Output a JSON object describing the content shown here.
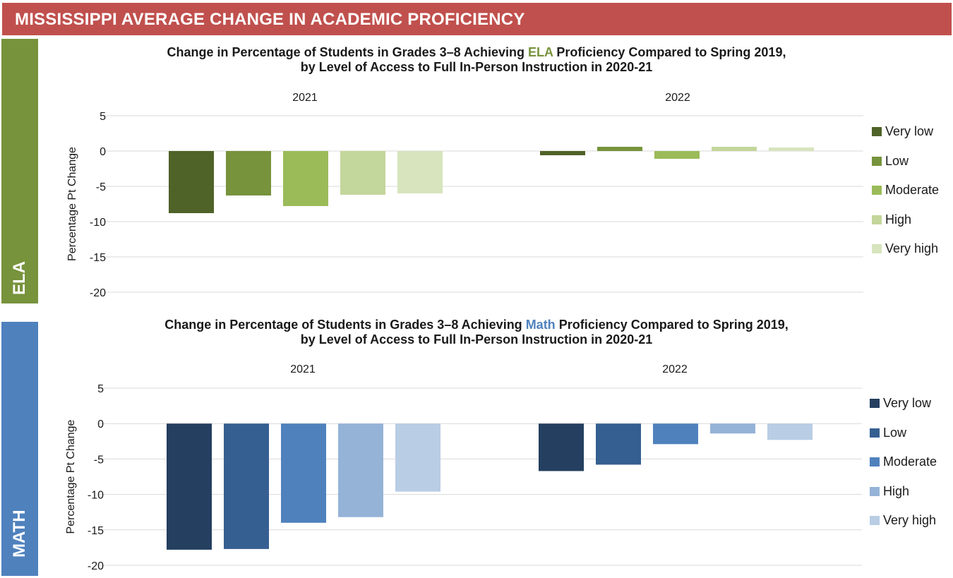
{
  "header": {
    "title": "MISSISSIPPI AVERAGE CHANGE IN ACADEMIC PROFICIENCY"
  },
  "side_tabs": {
    "ela": "ELA",
    "math": "MATH"
  },
  "chart_data": [
    {
      "type": "bar",
      "title_prefix": "Change in Percentage of Students in Grades 3–8 Achieving ",
      "title_subject": "ELA",
      "title_suffix": " Proficiency Compared to Spring 2019,",
      "title_line2": "by Level of Access to Full In-Person Instruction in 2020-21",
      "panels": [
        "2021",
        "2022"
      ],
      "ylabel": "Percentage Pt Change",
      "ylim": [
        -20,
        5
      ],
      "yticks": [
        "5",
        "0",
        "-5",
        "-10",
        "-15",
        "-20"
      ],
      "grid": true,
      "legend_position": "right",
      "series": [
        {
          "name": "Very low",
          "color": "#4f6228",
          "values": [
            -8.8,
            -0.6
          ]
        },
        {
          "name": "Low",
          "color": "#77933c",
          "values": [
            -6.3,
            0.6
          ]
        },
        {
          "name": "Moderate",
          "color": "#9bbb59",
          "values": [
            -7.8,
            -1.1
          ]
        },
        {
          "name": "High",
          "color": "#c3d69b",
          "values": [
            -6.2,
            0.6
          ]
        },
        {
          "name": "Very high",
          "color": "#d7e4bd",
          "values": [
            -6.0,
            0.5
          ]
        }
      ]
    },
    {
      "type": "bar",
      "title_prefix": "Change in Percentage of Students in Grades 3–8 Achieving ",
      "title_subject": "Math",
      "title_suffix": " Proficiency Compared to Spring 2019,",
      "title_line2": "by Level of Access to Full In-Person Instruction in 2020-21",
      "panels": [
        "2021",
        "2022"
      ],
      "ylabel": "Percentage Pt Change",
      "ylim": [
        -20,
        5
      ],
      "yticks": [
        "5",
        "0",
        "-5",
        "-10",
        "-15",
        "-20"
      ],
      "grid": true,
      "legend_position": "right",
      "series": [
        {
          "name": "Very low",
          "color": "#243f60",
          "values": [
            -17.8,
            -6.7
          ]
        },
        {
          "name": "Low",
          "color": "#365f91",
          "values": [
            -17.7,
            -5.8
          ]
        },
        {
          "name": "Moderate",
          "color": "#4f81bd",
          "values": [
            -14.0,
            -2.9
          ]
        },
        {
          "name": "High",
          "color": "#95b3d7",
          "values": [
            -13.2,
            -1.4
          ]
        },
        {
          "name": "Very high",
          "color": "#b9cde5",
          "values": [
            -9.6,
            -2.3
          ]
        }
      ]
    }
  ]
}
